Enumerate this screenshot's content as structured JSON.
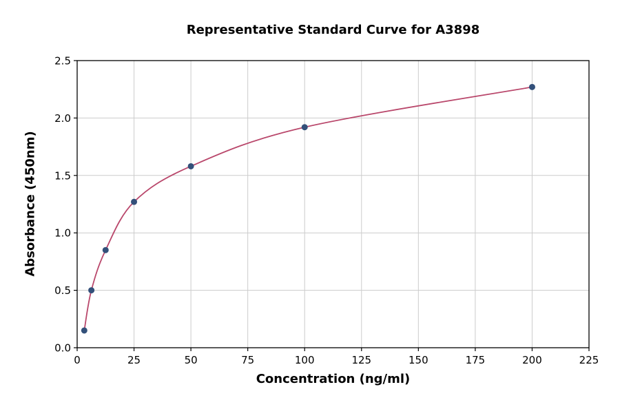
{
  "figure": {
    "title": "Representative Standard Curve for A3898",
    "x_axis_label": "Concentration (ng/ml)",
    "y_axis_label": "Absorbance (450nm)"
  },
  "chart_data": {
    "type": "scatter",
    "title": "Representative Standard Curve for A3898",
    "xlabel": "Concentration (ng/ml)",
    "ylabel": "Absorbance (450nm)",
    "xlim": [
      0,
      225
    ],
    "ylim": [
      0,
      2.5
    ],
    "x_ticks": [
      0,
      25,
      50,
      75,
      100,
      125,
      150,
      175,
      200,
      225
    ],
    "x_tick_labels": [
      "0",
      "25",
      "50",
      "75",
      "100",
      "125",
      "150",
      "175",
      "200",
      "225"
    ],
    "y_ticks": [
      0,
      0.5,
      1.0,
      1.5,
      2.0,
      2.5
    ],
    "y_tick_labels": [
      "0.0",
      "0.5",
      "1.0",
      "1.5",
      "2.0",
      "2.5"
    ],
    "grid": true,
    "legend": "none",
    "series": [
      {
        "name": "standard-curve",
        "x": [
          3.125,
          6.25,
          12.5,
          25,
          50,
          100,
          200
        ],
        "y": [
          0.15,
          0.5,
          0.85,
          1.27,
          1.58,
          1.92,
          2.27
        ]
      }
    ],
    "colors": {
      "curve": "#b9476b",
      "point": "#33507a",
      "grid": "#cccccc",
      "axis": "#000000",
      "background": "#ffffff"
    }
  }
}
